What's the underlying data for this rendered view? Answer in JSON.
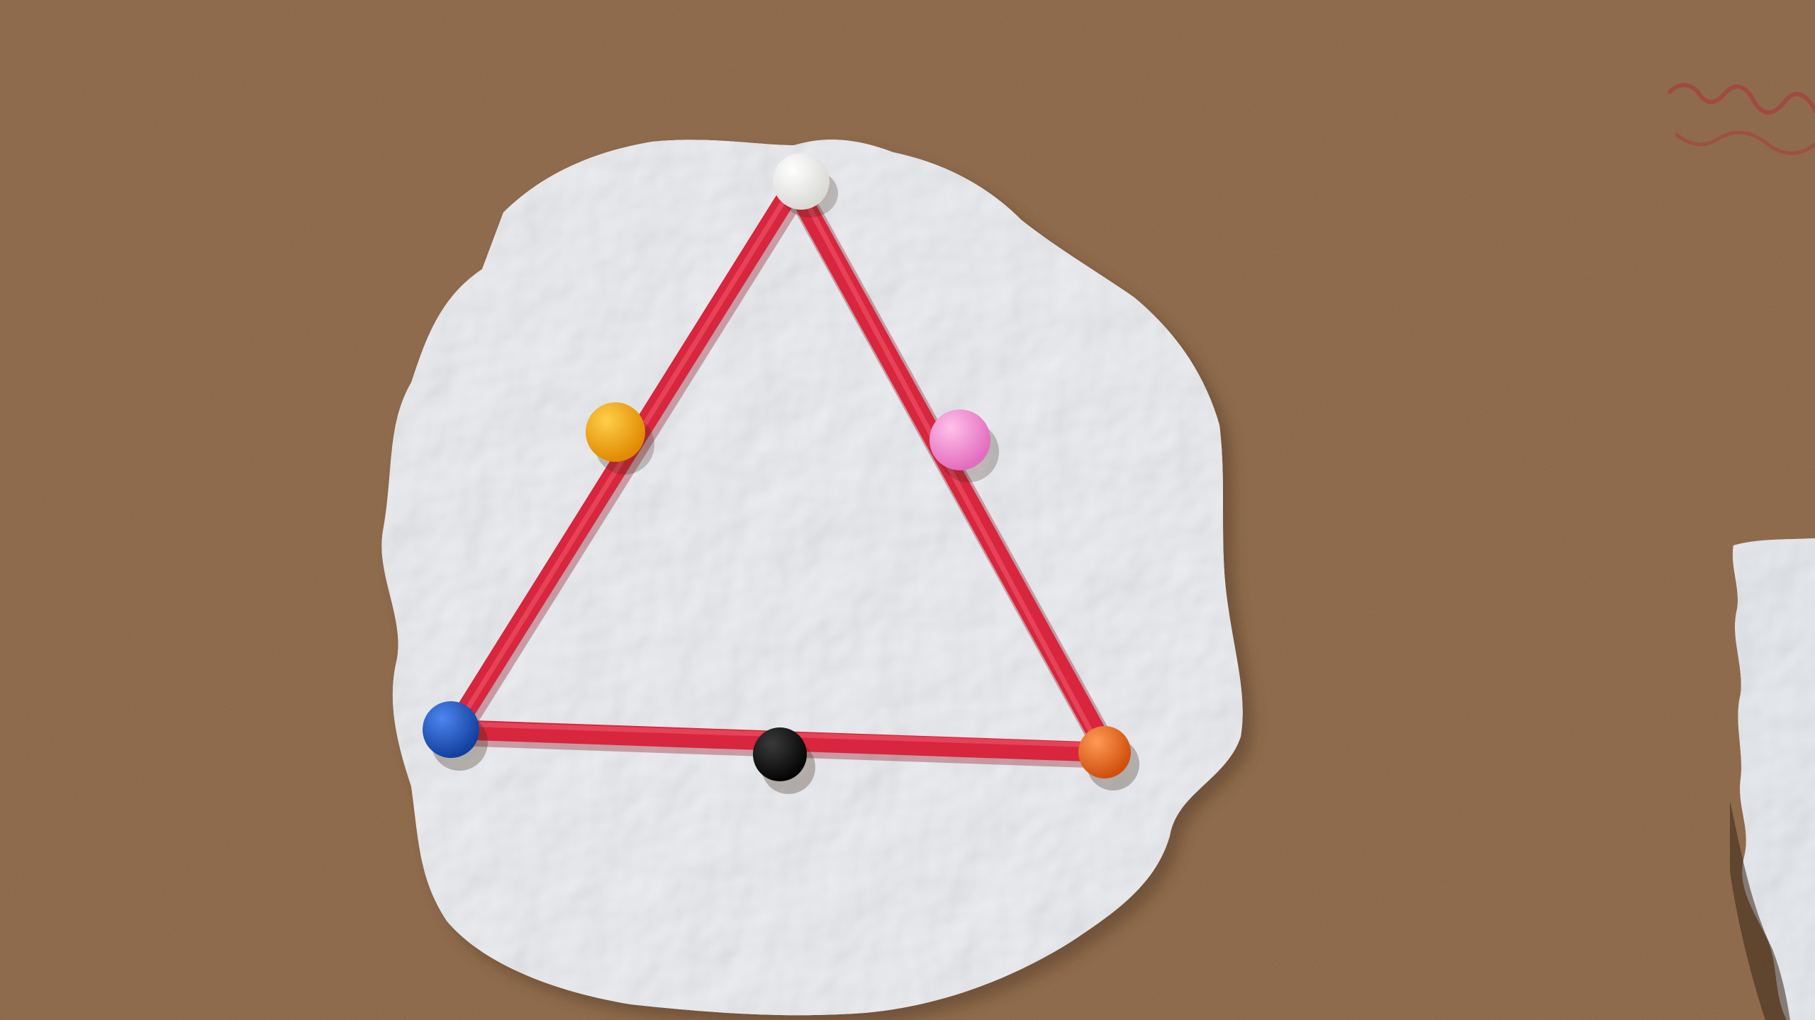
{
  "photo": {
    "colors": {
      "cork": "#8a6444",
      "cork_light": "#a47c58",
      "cork_dark": "#6e4c32",
      "clay_sheet": "#f1f3f7",
      "clay_shadow": "#d6dbe3",
      "triangle_rope": "#d7263d",
      "rope_highlight": "#f0576a"
    },
    "beads": [
      {
        "name": "white-bead-top",
        "color": "#f4f4f2"
      },
      {
        "name": "yellow-bead-left",
        "color": "#f3a51a"
      },
      {
        "name": "pink-bead-right",
        "color": "#f58bd0"
      },
      {
        "name": "blue-bead-bottom-left",
        "color": "#1f58c8"
      },
      {
        "name": "black-bead-bottom-middle",
        "color": "#141414"
      },
      {
        "name": "orange-bead-bottom-right",
        "color": "#ee6a1f"
      }
    ]
  }
}
